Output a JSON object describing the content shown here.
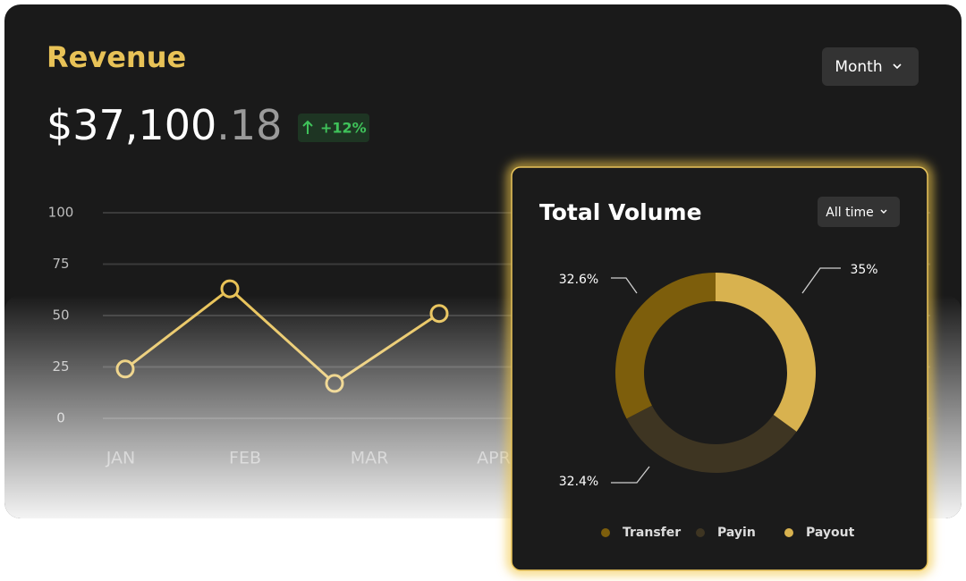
{
  "header": {
    "title": "Revenue",
    "amount": "$37,100",
    "amount_cents": ".18",
    "change": "+12%",
    "period": "Month"
  },
  "chart_data": [
    {
      "type": "line",
      "categories": [
        "JAN",
        "FEB",
        "MAR",
        "APR"
      ],
      "values": [
        24,
        63,
        17,
        51
      ],
      "color": "#e8c257",
      "ylim": [
        0,
        100
      ],
      "yticks": [
        0,
        25,
        50,
        75,
        100
      ],
      "grid": true
    },
    {
      "type": "pie",
      "title": "Total Volume",
      "filter": "All time",
      "donut": true,
      "categories": [
        "Transfer",
        "Payin",
        "Payout"
      ],
      "values": [
        32.6,
        32.4,
        35
      ],
      "value_labels": [
        "32.6%",
        "32.4%",
        "35%"
      ],
      "colors": [
        "#7d5e0c",
        "#3e3522",
        "#d8b24f"
      ]
    }
  ]
}
